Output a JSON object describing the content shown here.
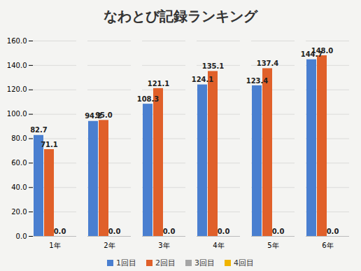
{
  "chart_data": {
    "type": "bar",
    "title": "なわとび記録ランキング",
    "categories": [
      "1年",
      "2年",
      "3年",
      "4年",
      "5年",
      "6年"
    ],
    "series": [
      {
        "name": "1回目",
        "color": "#4a7fd0",
        "values": [
          82.7,
          94.2,
          108.3,
          124.1,
          123.4,
          144.7
        ],
        "value_labels": [
          "82.7",
          "94.2",
          "108.3",
          "124.1",
          "123.4",
          "144.7"
        ]
      },
      {
        "name": "2回目",
        "color": "#e0602a",
        "values": [
          71.1,
          95.0,
          121.1,
          135.1,
          137.4,
          148.0
        ],
        "value_labels": [
          "71.1",
          "95.0",
          "121.1",
          "135.1",
          "137.4",
          "148.0"
        ]
      },
      {
        "name": "3回目",
        "color": "#a5a5a5",
        "values": [
          0,
          0,
          0,
          0,
          0,
          0
        ],
        "value_labels": [
          "0.0",
          "0.0",
          "0.0",
          "0.0",
          "0.0",
          "0.0"
        ]
      },
      {
        "name": "4回目",
        "color": "#f0b400",
        "values": [
          null,
          null,
          null,
          null,
          null,
          null
        ],
        "value_labels": [
          null,
          null,
          null,
          null,
          null,
          null
        ]
      }
    ],
    "ylim": [
      0,
      160
    ],
    "yticks": [
      {
        "value": 0,
        "label": "0.0"
      },
      {
        "value": 20,
        "label": "20.0"
      },
      {
        "value": 40,
        "label": "40.0"
      },
      {
        "value": 60,
        "label": "60.0"
      },
      {
        "value": 80,
        "label": "80.0"
      },
      {
        "value": 100,
        "label": "100.0"
      },
      {
        "value": 120,
        "label": "120.0"
      },
      {
        "value": 140,
        "label": "140.0"
      },
      {
        "value": 160,
        "label": "160.0"
      }
    ],
    "grid": true,
    "legend": "bottom",
    "data_labels": true
  }
}
